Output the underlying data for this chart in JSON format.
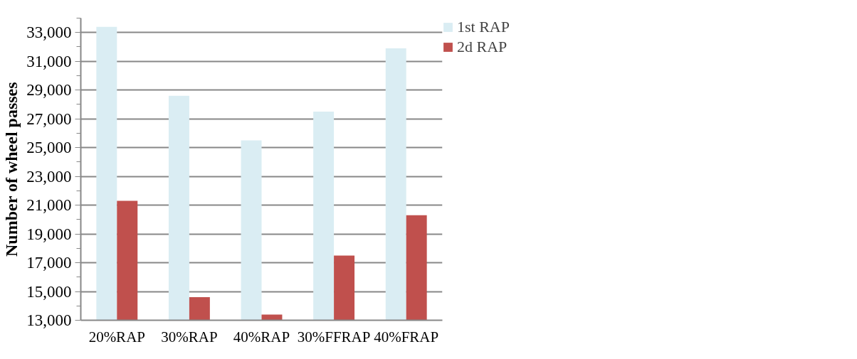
{
  "chart_data": {
    "type": "bar",
    "ylabel": "Number of wheel passes",
    "categories": [
      "20%RAP",
      "30%RAP",
      "40%RAP",
      "30%FFRAP",
      "40%FRAP"
    ],
    "series": [
      {
        "name": "1st RAP",
        "color": "#daedf3",
        "values": [
          33400,
          28600,
          25500,
          27500,
          31900
        ]
      },
      {
        "name": "2d RAP",
        "color": "#c0504d",
        "values": [
          21300,
          14600,
          13400,
          17500,
          20300
        ]
      }
    ],
    "ylim": [
      13000,
      34000
    ],
    "yticks": [
      {
        "value": 13000,
        "label": "13,000"
      },
      {
        "value": 15000,
        "label": "15,000"
      },
      {
        "value": 17000,
        "label": "17,000"
      },
      {
        "value": 19000,
        "label": "19,000"
      },
      {
        "value": 21000,
        "label": "21,000"
      },
      {
        "value": 23000,
        "label": "23,000"
      },
      {
        "value": 25000,
        "label": "25,000"
      },
      {
        "value": 27000,
        "label": "27,000"
      },
      {
        "value": 29000,
        "label": "29,000"
      },
      {
        "value": 31000,
        "label": "31,000"
      },
      {
        "value": 33000,
        "label": "33,000"
      }
    ],
    "grid": "y",
    "legend": "right"
  }
}
